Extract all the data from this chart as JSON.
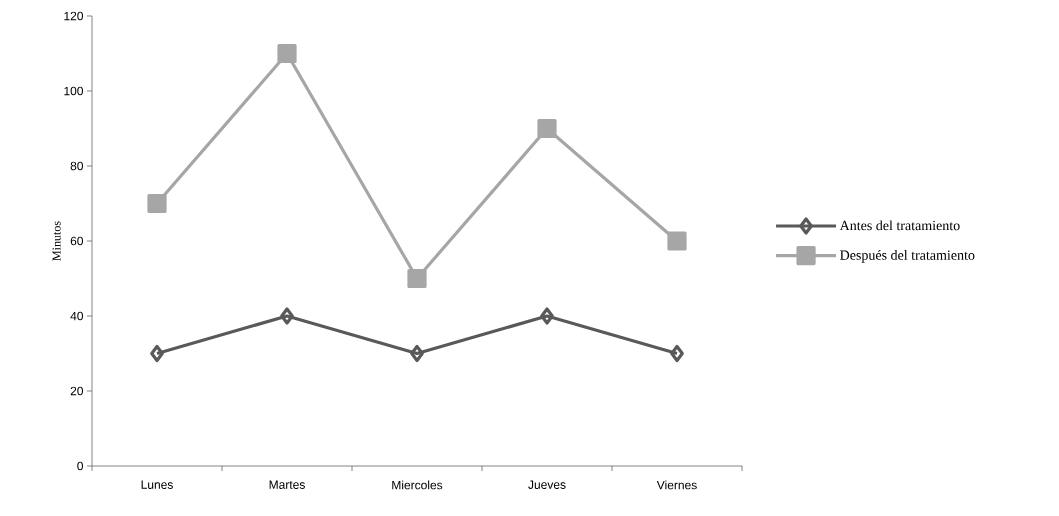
{
  "chart_data": {
    "type": "line",
    "ylabel": "Minutos",
    "categories": [
      "Lunes",
      "Martes",
      "Miercoles",
      "Jueves",
      "Viernes"
    ],
    "series": [
      {
        "name": "Antes del tratamiento",
        "color": "#595959",
        "marker": "diamond",
        "values": [
          30,
          40,
          30,
          40,
          30
        ]
      },
      {
        "name": "Después del tratamiento",
        "color": "#a6a6a6",
        "marker": "square",
        "values": [
          70,
          110,
          50,
          90,
          60
        ]
      }
    ],
    "ylim": [
      0,
      120
    ],
    "yticks": [
      0,
      20,
      40,
      60,
      80,
      100,
      120
    ],
    "grid": false,
    "legend": "right",
    "line_style": "solid"
  }
}
